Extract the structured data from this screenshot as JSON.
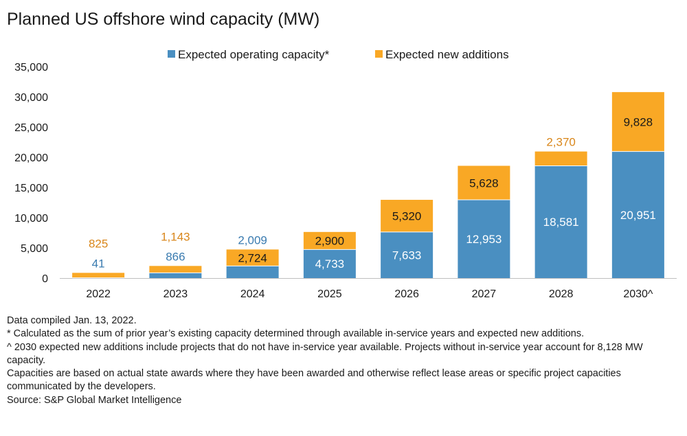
{
  "chart_data": {
    "type": "bar",
    "stacked": true,
    "title": "Planned US offshore wind capacity (MW)",
    "categories": [
      "2022",
      "2023",
      "2024",
      "2025",
      "2026",
      "2027",
      "2028",
      "2030^"
    ],
    "series": [
      {
        "name": "Expected operating capacity*",
        "color": "#4a8fc1",
        "values": [
          41,
          866,
          2009,
          4733,
          7633,
          12953,
          18581,
          20951
        ],
        "labels": [
          "41",
          "866",
          "2,009",
          "4,733",
          "7,633",
          "12,953",
          "18,581",
          "20,951"
        ]
      },
      {
        "name": "Expected new additions",
        "color": "#f9a825",
        "values": [
          825,
          1143,
          2724,
          2900,
          5320,
          5628,
          2370,
          9828
        ],
        "labels": [
          "825",
          "1,143",
          "2,724",
          "2,900",
          "5,320",
          "5,628",
          "2,370",
          "9,828"
        ]
      }
    ],
    "ylim": [
      0,
      35000
    ],
    "yticks": [
      0,
      5000,
      10000,
      15000,
      20000,
      25000,
      30000,
      35000
    ],
    "ytick_labels": [
      "0",
      "5,000",
      "10,000",
      "15,000",
      "20,000",
      "25,000",
      "30,000",
      "35,000"
    ],
    "grid": false,
    "legend_position": "top-center"
  },
  "notes": [
    "Data compiled Jan. 13, 2022.",
    "* Calculated as the sum of prior year’s existing capacity determined through available in-service years and expected new additions.",
    "^ 2030 expected new additions include projects that do not have in-service year available. Projects without in-service year account for 8,128 MW capacity.",
    "Capacities are based on actual state awards where they have been awarded and otherwise reflect lease areas or specific project capacities communicated by the developers.",
    "Source: S&P Global Market Intelligence"
  ]
}
